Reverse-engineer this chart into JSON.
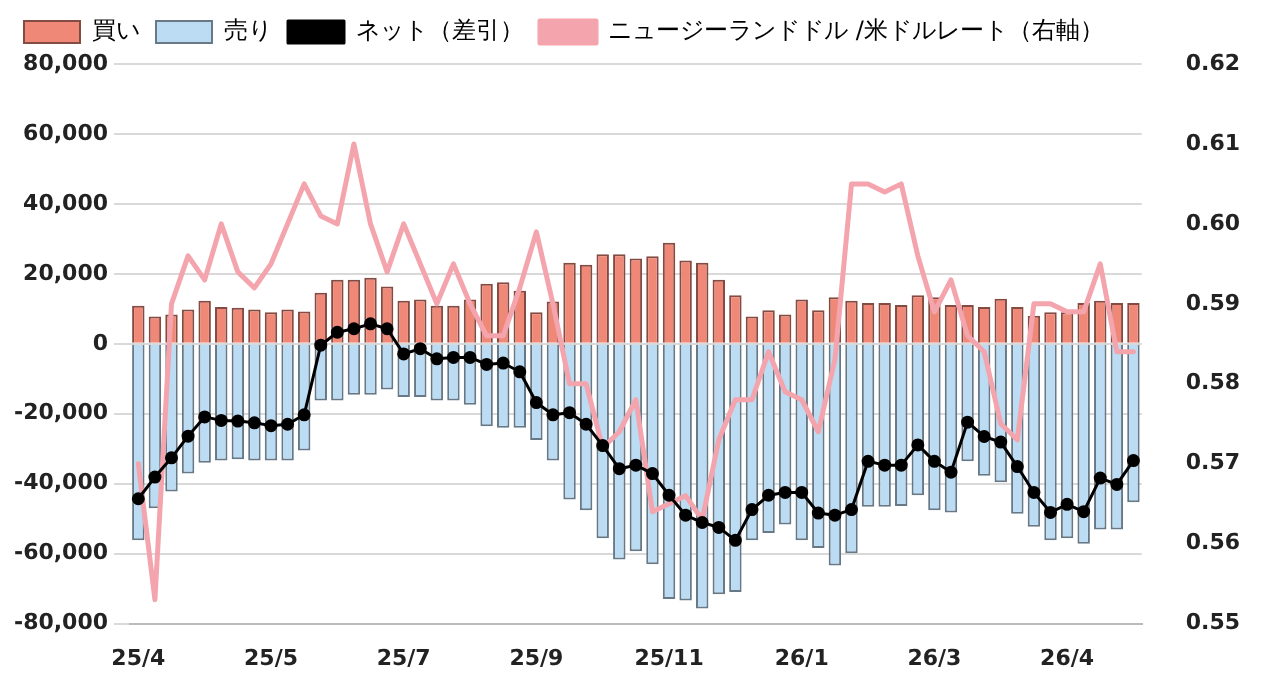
{
  "chart_data": {
    "type": "bar",
    "stacked": true,
    "legend": "top",
    "grid": "y",
    "marker": "none",
    "categories": [
      "25/4",
      null,
      null,
      null,
      null,
      null,
      null,
      null,
      "25/5",
      null,
      null,
      null,
      null,
      null,
      null,
      null,
      "25/7",
      null,
      null,
      null,
      null,
      null,
      null,
      null,
      "25/9",
      null,
      null,
      null,
      null,
      null,
      null,
      null,
      "25/11",
      null,
      null,
      null,
      null,
      null,
      null,
      null,
      "26/1",
      null,
      null,
      null,
      null,
      null,
      null,
      null,
      "26/3",
      null,
      null,
      null,
      null,
      null,
      null,
      null,
      "26/4",
      null,
      null,
      null,
      null
    ],
    "ylim": [
      -80000,
      80000
    ],
    "yticks": [
      {
        "value": -80000,
        "label": "-80,000"
      },
      {
        "value": -60000,
        "label": "-60,000"
      },
      {
        "value": -40000,
        "label": "-40,000"
      },
      {
        "value": -20000,
        "label": "-20,000"
      },
      {
        "value": 0,
        "label": "0"
      },
      {
        "value": 20000,
        "label": "20,000"
      },
      {
        "value": 40000,
        "label": "40,000"
      },
      {
        "value": 60000,
        "label": "60,000"
      },
      {
        "value": 80000,
        "label": "80,000"
      }
    ],
    "y2lim": [
      0.55,
      0.62
    ],
    "y2ticks": [
      {
        "value": 0.55,
        "label": "0.55"
      },
      {
        "value": 0.56,
        "label": "0.56"
      },
      {
        "value": 0.57,
        "label": "0.57"
      },
      {
        "value": 0.58,
        "label": "0.58"
      },
      {
        "value": 0.59,
        "label": "0.59"
      },
      {
        "value": 0.6,
        "label": "0.60"
      },
      {
        "value": 0.61,
        "label": "0.61"
      },
      {
        "value": 0.62,
        "label": "0.62"
      }
    ],
    "series": [
      {
        "name": "買い",
        "color": "#f08878",
        "values": [
          10900,
          7800,
          8400,
          9800,
          12300,
          10500,
          10300,
          9800,
          9000,
          9800,
          9200,
          14600,
          18300,
          18300,
          18900,
          16400,
          12300,
          12700,
          10900,
          10900,
          12700,
          17200,
          17600,
          15200,
          9000,
          12100,
          23200,
          22600,
          25600,
          25600,
          24400,
          25000,
          28900,
          23800,
          23200,
          18300,
          13900,
          7800,
          9600,
          8400,
          12700,
          9600,
          13300,
          12300,
          11700,
          11700,
          11100,
          13900,
          13300,
          11100,
          11100,
          10500,
          12900,
          10500,
          8000,
          9000,
          9000,
          11700,
          12300,
          11700,
          11700
        ]
      },
      {
        "name": "売り",
        "color": "#bcdcf4",
        "values": [
          -56200,
          -47000,
          -42200,
          -37100,
          -34000,
          -33400,
          -33000,
          -33400,
          -33400,
          -33400,
          -30500,
          -16200,
          -16200,
          -14600,
          -14600,
          -13100,
          -15200,
          -15200,
          -16200,
          -16200,
          -17400,
          -23600,
          -24000,
          -24000,
          -27500,
          -33400,
          -44500,
          -47600,
          -55600,
          -61700,
          -59300,
          -63000,
          -73000,
          -73400,
          -75700,
          -71600,
          -71000,
          -56200,
          -54100,
          -51700,
          -56200,
          -58400,
          -63400,
          -59900,
          -46600,
          -46600,
          -46400,
          -43300,
          -47600,
          -48200,
          -33600,
          -37700,
          -39600,
          -48600,
          -52300,
          -56200,
          -55600,
          -57200,
          -53100,
          -53100,
          -45300
        ]
      },
      {
        "name": "ネット（差引）",
        "type": "line",
        "marker": "circle",
        "color": "#000000",
        "values": [
          -44300,
          -38100,
          -32600,
          -26400,
          -20900,
          -21900,
          -22100,
          -22600,
          -23400,
          -23000,
          -20300,
          -400,
          3300,
          4300,
          5700,
          4300,
          -2900,
          -1400,
          -4300,
          -3900,
          -3900,
          -5900,
          -5500,
          -8000,
          -16800,
          -20300,
          -19700,
          -23000,
          -29100,
          -35700,
          -34700,
          -37100,
          -43300,
          -49000,
          -51100,
          -52500,
          -56200,
          -47400,
          -43300,
          -42500,
          -42500,
          -48400,
          -49000,
          -47400,
          -33600,
          -34700,
          -34700,
          -28900,
          -33600,
          -36700,
          -22400,
          -26500,
          -28100,
          -35100,
          -42500,
          -48200,
          -45900,
          -48000,
          -38400,
          -40200,
          -33400
        ]
      },
      {
        "name": "ニュージーランドドル /米ドルレート（右軸）",
        "type": "line",
        "axis": "y2",
        "color": "#f4a4ac",
        "values": [
          0.57,
          0.553,
          0.59,
          0.596,
          0.593,
          0.6,
          0.594,
          0.592,
          0.595,
          0.6,
          0.605,
          0.601,
          0.6,
          0.61,
          0.6,
          0.594,
          0.6,
          0.595,
          0.59,
          0.595,
          0.59,
          0.586,
          0.586,
          0.592,
          0.599,
          0.59,
          0.58,
          0.58,
          0.572,
          0.574,
          0.578,
          0.564,
          0.565,
          0.566,
          0.563,
          0.573,
          0.578,
          0.578,
          0.584,
          0.579,
          0.578,
          0.574,
          0.583,
          0.605,
          0.605,
          0.604,
          0.605,
          0.596,
          0.589,
          0.593,
          0.586,
          0.584,
          0.575,
          0.573,
          0.59,
          0.59,
          0.589,
          0.589,
          0.595,
          0.584,
          0.584
        ]
      }
    ]
  }
}
